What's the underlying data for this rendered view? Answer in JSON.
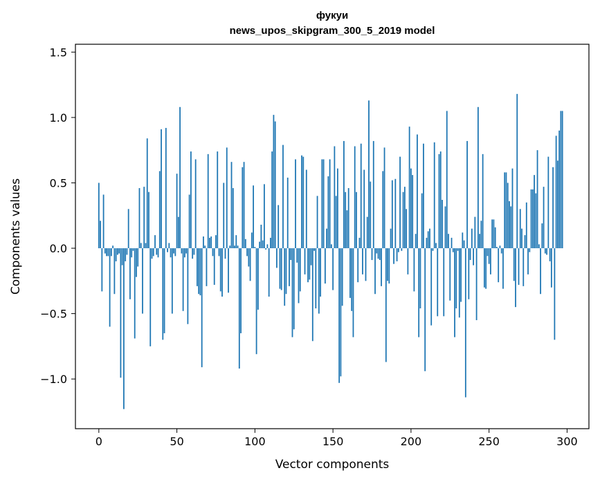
{
  "chart_data": {
    "type": "bar",
    "title": "фукуи",
    "subtitle": "news_upos_skipgram_300_5_2019 model",
    "xlabel": "Vector components",
    "ylabel": "Components values",
    "xlim": [
      -15,
      314
    ],
    "ylim": [
      -1.38,
      1.56
    ],
    "xticks": [
      0,
      50,
      100,
      150,
      200,
      250,
      300
    ],
    "yticks": [
      -1.0,
      -0.5,
      0.0,
      0.5,
      1.0,
      1.5
    ],
    "ytick_labels": [
      "−1.0",
      "−0.5",
      "0.0",
      "0.5",
      "1.0",
      "1.5"
    ],
    "grid": false,
    "bar_color": "#1f77b4",
    "x_start": 0,
    "values": [
      0.5,
      0.21,
      -0.33,
      0.41,
      -0.04,
      -0.06,
      -0.06,
      -0.6,
      -0.06,
      0.02,
      -0.35,
      -0.1,
      -0.05,
      -0.04,
      -0.99,
      -0.13,
      -1.23,
      -0.1,
      -0.05,
      0.3,
      -0.39,
      -0.07,
      -0.02,
      -0.69,
      -0.22,
      -0.14,
      0.46,
      0.04,
      -0.5,
      0.47,
      0.04,
      0.84,
      0.43,
      -0.75,
      -0.08,
      -0.06,
      0.1,
      -0.05,
      -0.07,
      0.59,
      0.91,
      -0.7,
      -0.65,
      0.92,
      -0.03,
      0.04,
      -0.07,
      -0.5,
      -0.04,
      -0.06,
      0.57,
      0.24,
      1.08,
      -0.04,
      -0.48,
      -0.07,
      -0.04,
      -0.58,
      0.41,
      0.74,
      -0.08,
      -0.05,
      0.68,
      -0.29,
      -0.35,
      -0.36,
      -0.91,
      0.09,
      0.02,
      -0.29,
      0.72,
      0.08,
      0.09,
      -0.06,
      -0.28,
      0.1,
      0.74,
      -0.06,
      -0.33,
      -0.37,
      0.5,
      -0.08,
      0.77,
      -0.34,
      0.02,
      0.66,
      0.46,
      0.02,
      0.1,
      0.02,
      -0.92,
      -0.65,
      0.62,
      0.66,
      0.07,
      -0.06,
      -0.14,
      -0.25,
      0.12,
      0.48,
      0.01,
      -0.81,
      -0.47,
      0.05,
      0.18,
      0.06,
      0.49,
      -0.01,
      0.03,
      -0.37,
      0.08,
      0.74,
      1.02,
      0.97,
      -0.15,
      0.33,
      -0.31,
      -0.32,
      0.79,
      -0.44,
      -0.35,
      0.54,
      -0.29,
      -0.09,
      -0.68,
      -0.62,
      0.68,
      -0.11,
      -0.42,
      -0.33,
      0.71,
      0.7,
      -0.2,
      0.6,
      -0.26,
      -0.24,
      -0.13,
      -0.71,
      -0.02,
      -0.46,
      0.4,
      -0.5,
      -0.37,
      0.68,
      0.68,
      -0.27,
      0.15,
      0.55,
      0.68,
      0.03,
      -0.32,
      0.78,
      0.4,
      0.61,
      -1.03,
      -0.98,
      -0.44,
      0.82,
      0.43,
      0.29,
      0.46,
      -0.38,
      -0.48,
      -0.68,
      0.78,
      0.43,
      -0.26,
      0.08,
      0.8,
      -0.2,
      0.6,
      -0.25,
      0.24,
      1.13,
      0.51,
      -0.09,
      0.82,
      -0.35,
      -0.04,
      -0.08,
      -0.09,
      -0.29,
      0.59,
      0.77,
      -0.87,
      -0.25,
      -0.27,
      0.15,
      0.52,
      -0.12,
      0.53,
      -0.1,
      -0.03,
      0.7,
      -0.02,
      0.43,
      0.47,
      0.3,
      -0.2,
      0.93,
      0.61,
      0.56,
      -0.33,
      0.11,
      0.87,
      -0.68,
      -0.46,
      0.42,
      0.8,
      -0.94,
      0.08,
      0.13,
      0.15,
      -0.59,
      -0.02,
      0.81,
      0.04,
      -0.52,
      0.72,
      0.74,
      0.37,
      -0.52,
      0.32,
      1.05,
      0.11,
      -0.4,
      0.08,
      -0.03,
      -0.68,
      -0.46,
      -0.02,
      -0.53,
      -0.41,
      0.12,
      0.06,
      -1.14,
      0.82,
      -0.39,
      -0.09,
      0.15,
      -0.13,
      0.24,
      -0.55,
      1.08,
      0.11,
      0.21,
      0.72,
      -0.3,
      -0.31,
      -0.06,
      -0.12,
      -0.2,
      0.22,
      0.22,
      0.16,
      0.01,
      -0.26,
      0.02,
      -0.04,
      -0.31,
      0.58,
      0.58,
      0.5,
      0.36,
      0.32,
      0.61,
      -0.25,
      -0.45,
      1.18,
      -0.28,
      0.3,
      0.15,
      -0.29,
      0.1,
      0.35,
      -0.2,
      -0.03,
      0.45,
      0.45,
      0.56,
      0.42,
      0.75,
      0.03,
      -0.35,
      0.19,
      0.47,
      -0.04,
      -0.05,
      0.7,
      -0.1,
      -0.3,
      0.62,
      -0.7,
      0.86,
      0.67,
      0.9,
      1.05,
      1.05
    ]
  }
}
